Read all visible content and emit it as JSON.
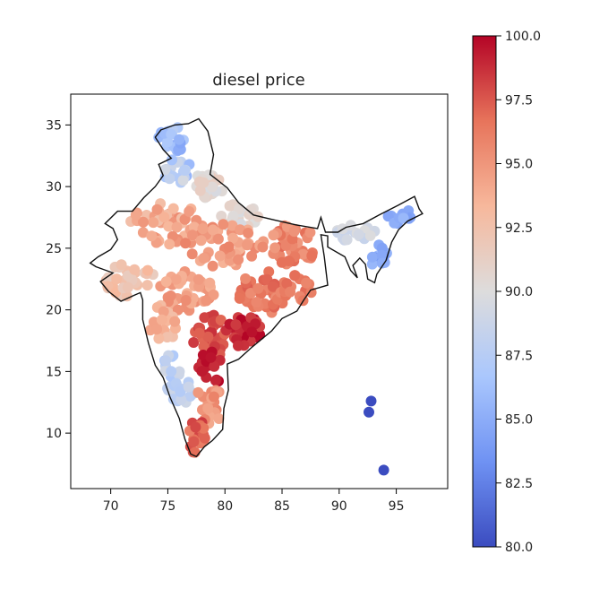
{
  "chart_data": {
    "type": "scatter",
    "title": "diesel price",
    "xlabel": "",
    "ylabel": "",
    "xlim": [
      66.5,
      99.5
    ],
    "ylim": [
      5.5,
      37.5
    ],
    "xticks": [
      70,
      75,
      80,
      85,
      90,
      95
    ],
    "yticks": [
      10,
      15,
      20,
      25,
      30,
      35
    ],
    "grid": false,
    "colorbar": {
      "label": "",
      "range": [
        80.0,
        100.0
      ],
      "ticks": [
        "80.0",
        "82.5",
        "85.0",
        "87.5",
        "90.0",
        "92.5",
        "95.0",
        "97.5",
        "100.0"
      ],
      "colormap": "coolwarm",
      "colors": [
        "#3b4cc0",
        "#6f92f3",
        "#aac7fd",
        "#dddcdc",
        "#f7b89c",
        "#e7745b",
        "#b40426"
      ]
    },
    "boundary": [
      [
        74.4,
        34.6
      ],
      [
        75.6,
        35.0
      ],
      [
        76.8,
        35.1
      ],
      [
        77.7,
        35.5
      ],
      [
        78.5,
        34.5
      ],
      [
        79.0,
        32.6
      ],
      [
        78.7,
        31.0
      ],
      [
        80.2,
        29.9
      ],
      [
        81.2,
        28.7
      ],
      [
        82.5,
        27.7
      ],
      [
        84.3,
        27.3
      ],
      [
        86.2,
        26.9
      ],
      [
        88.1,
        26.6
      ],
      [
        88.4,
        27.5
      ],
      [
        88.8,
        26.3
      ],
      [
        89.9,
        26.3
      ],
      [
        90.6,
        26.7
      ],
      [
        92.1,
        27.0
      ],
      [
        93.5,
        27.7
      ],
      [
        95.2,
        28.5
      ],
      [
        96.6,
        29.2
      ],
      [
        97.0,
        28.2
      ],
      [
        97.3,
        27.8
      ],
      [
        96.0,
        27.2
      ],
      [
        95.2,
        26.5
      ],
      [
        94.6,
        25.5
      ],
      [
        94.1,
        24.0
      ],
      [
        93.3,
        22.9
      ],
      [
        93.1,
        22.2
      ],
      [
        92.5,
        22.5
      ],
      [
        92.3,
        23.7
      ],
      [
        91.8,
        24.2
      ],
      [
        91.2,
        23.6
      ],
      [
        91.6,
        22.6
      ],
      [
        91.0,
        23.2
      ],
      [
        90.5,
        24.3
      ],
      [
        89.0,
        25.1
      ],
      [
        89.0,
        26.0
      ],
      [
        88.4,
        26.1
      ],
      [
        88.7,
        24.3
      ],
      [
        89.0,
        22.0
      ],
      [
        87.5,
        21.6
      ],
      [
        86.9,
        20.8
      ],
      [
        86.3,
        19.9
      ],
      [
        85.0,
        19.3
      ],
      [
        84.1,
        18.3
      ],
      [
        82.4,
        17.0
      ],
      [
        81.2,
        16.0
      ],
      [
        80.2,
        15.6
      ],
      [
        80.3,
        13.5
      ],
      [
        79.9,
        12.0
      ],
      [
        79.8,
        10.3
      ],
      [
        78.9,
        9.4
      ],
      [
        78.2,
        8.9
      ],
      [
        77.5,
        8.1
      ],
      [
        77.0,
        8.3
      ],
      [
        76.5,
        9.5
      ],
      [
        76.0,
        11.2
      ],
      [
        75.2,
        12.9
      ],
      [
        74.6,
        14.5
      ],
      [
        73.9,
        15.5
      ],
      [
        73.3,
        17.3
      ],
      [
        72.8,
        19.2
      ],
      [
        72.8,
        20.8
      ],
      [
        72.6,
        21.4
      ],
      [
        72.1,
        21.2
      ],
      [
        70.9,
        20.7
      ],
      [
        69.8,
        21.5
      ],
      [
        69.1,
        22.3
      ],
      [
        70.2,
        23.0
      ],
      [
        68.7,
        23.5
      ],
      [
        68.2,
        23.8
      ],
      [
        68.9,
        24.3
      ],
      [
        70.0,
        24.9
      ],
      [
        70.6,
        25.7
      ],
      [
        70.2,
        26.6
      ],
      [
        69.5,
        27.0
      ],
      [
        70.6,
        28.0
      ],
      [
        71.9,
        28.0
      ],
      [
        72.9,
        29.1
      ],
      [
        73.9,
        30.0
      ],
      [
        74.6,
        30.9
      ],
      [
        74.2,
        31.8
      ],
      [
        75.3,
        32.3
      ],
      [
        74.6,
        33.0
      ],
      [
        73.9,
        34.0
      ],
      [
        74.4,
        34.6
      ]
    ],
    "clusters": [
      {
        "cx": 75.3,
        "cy": 33.8,
        "rx": 1.3,
        "ry": 1.2,
        "n": 22,
        "vmin": 84.5,
        "vmax": 88.0
      },
      {
        "cx": 75.8,
        "cy": 31.3,
        "rx": 1.3,
        "ry": 1.0,
        "n": 22,
        "vmin": 85.5,
        "vmax": 89.5
      },
      {
        "cx": 78.6,
        "cy": 30.0,
        "rx": 1.6,
        "ry": 1.1,
        "n": 30,
        "vmin": 89.5,
        "vmax": 91.5
      },
      {
        "cx": 81.2,
        "cy": 27.6,
        "rx": 1.9,
        "ry": 1.0,
        "n": 24,
        "vmin": 89.5,
        "vmax": 91.5
      },
      {
        "cx": 75.0,
        "cy": 27.0,
        "rx": 3.4,
        "ry": 1.8,
        "n": 50,
        "vmin": 92.5,
        "vmax": 95.5
      },
      {
        "cx": 80.0,
        "cy": 25.2,
        "rx": 3.5,
        "ry": 1.8,
        "n": 52,
        "vmin": 93.5,
        "vmax": 96.0
      },
      {
        "cx": 85.8,
        "cy": 25.2,
        "rx": 2.3,
        "ry": 1.7,
        "n": 40,
        "vmin": 94.5,
        "vmax": 97.0
      },
      {
        "cx": 71.6,
        "cy": 22.4,
        "rx": 2.4,
        "ry": 1.4,
        "n": 30,
        "vmin": 91.5,
        "vmax": 93.5
      },
      {
        "cx": 76.5,
        "cy": 21.5,
        "rx": 2.6,
        "ry": 1.6,
        "n": 42,
        "vmin": 93.5,
        "vmax": 95.5
      },
      {
        "cx": 83.3,
        "cy": 21.4,
        "rx": 2.2,
        "ry": 1.8,
        "n": 40,
        "vmin": 95.5,
        "vmax": 97.5
      },
      {
        "cx": 86.4,
        "cy": 21.8,
        "rx": 1.3,
        "ry": 1.2,
        "n": 18,
        "vmin": 95.5,
        "vmax": 97.0
      },
      {
        "cx": 74.6,
        "cy": 18.9,
        "rx": 1.3,
        "ry": 1.5,
        "n": 22,
        "vmin": 92.5,
        "vmax": 94.5
      },
      {
        "cx": 78.7,
        "cy": 17.9,
        "rx": 1.6,
        "ry": 1.8,
        "n": 38,
        "vmin": 97.0,
        "vmax": 98.8
      },
      {
        "cx": 81.7,
        "cy": 18.2,
        "rx": 1.6,
        "ry": 1.3,
        "n": 26,
        "vmin": 98.0,
        "vmax": 100.0
      },
      {
        "cx": 75.3,
        "cy": 14.8,
        "rx": 0.9,
        "ry": 1.6,
        "n": 20,
        "vmin": 86.5,
        "vmax": 89.5
      },
      {
        "cx": 78.9,
        "cy": 15.4,
        "rx": 1.2,
        "ry": 1.4,
        "n": 16,
        "vmin": 98.5,
        "vmax": 100.0
      },
      {
        "cx": 76.4,
        "cy": 13.2,
        "rx": 1.0,
        "ry": 1.2,
        "n": 14,
        "vmin": 87.0,
        "vmax": 89.0
      },
      {
        "cx": 78.6,
        "cy": 12.3,
        "rx": 1.3,
        "ry": 1.6,
        "n": 22,
        "vmin": 94.0,
        "vmax": 96.0
      },
      {
        "cx": 77.4,
        "cy": 9.9,
        "rx": 0.9,
        "ry": 1.5,
        "n": 18,
        "vmin": 96.0,
        "vmax": 98.5
      },
      {
        "cx": 91.5,
        "cy": 26.2,
        "rx": 1.8,
        "ry": 0.7,
        "n": 18,
        "vmin": 88.5,
        "vmax": 90.0
      },
      {
        "cx": 95.3,
        "cy": 27.6,
        "rx": 1.2,
        "ry": 0.7,
        "n": 12,
        "vmin": 84.0,
        "vmax": 86.0
      },
      {
        "cx": 93.5,
        "cy": 24.2,
        "rx": 0.7,
        "ry": 1.3,
        "n": 12,
        "vmin": 83.5,
        "vmax": 86.0
      }
    ],
    "points": [
      {
        "x": 92.8,
        "y": 12.6,
        "v": 80.0
      },
      {
        "x": 92.6,
        "y": 11.7,
        "v": 80.0
      },
      {
        "x": 93.9,
        "y": 7.0,
        "v": 80.0
      }
    ]
  }
}
